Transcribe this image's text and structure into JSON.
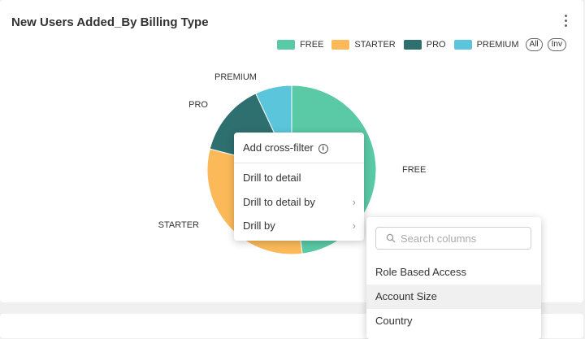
{
  "chart_title": "New Users Added_By Billing Type",
  "legend": {
    "items": [
      {
        "label": "FREE",
        "color": "#5ac9a6"
      },
      {
        "label": "STARTER",
        "color": "#fbb959"
      },
      {
        "label": "PRO",
        "color": "#2e6f70"
      },
      {
        "label": "PREMIUM",
        "color": "#5bc5dc"
      }
    ],
    "all_label": "All",
    "inv_label": "Inv"
  },
  "chart_data": {
    "type": "pie",
    "labels": [
      "FREE",
      "STARTER",
      "PRO",
      "PREMIUM"
    ],
    "values": [
      48,
      31,
      14,
      7
    ],
    "colors": [
      "#5ac9a6",
      "#fbb959",
      "#2e6f70",
      "#5bc5dc"
    ],
    "legend_position": "top-right"
  },
  "context_menu": {
    "cross_filter": "Add cross-filter",
    "drill_detail": "Drill to detail",
    "drill_detail_by": "Drill to detail by",
    "drill_by": "Drill by"
  },
  "drill_by_menu": {
    "search_placeholder": "Search columns",
    "columns": [
      "Role Based Access",
      "Account Size",
      "Country"
    ],
    "highlighted_index": 1
  }
}
